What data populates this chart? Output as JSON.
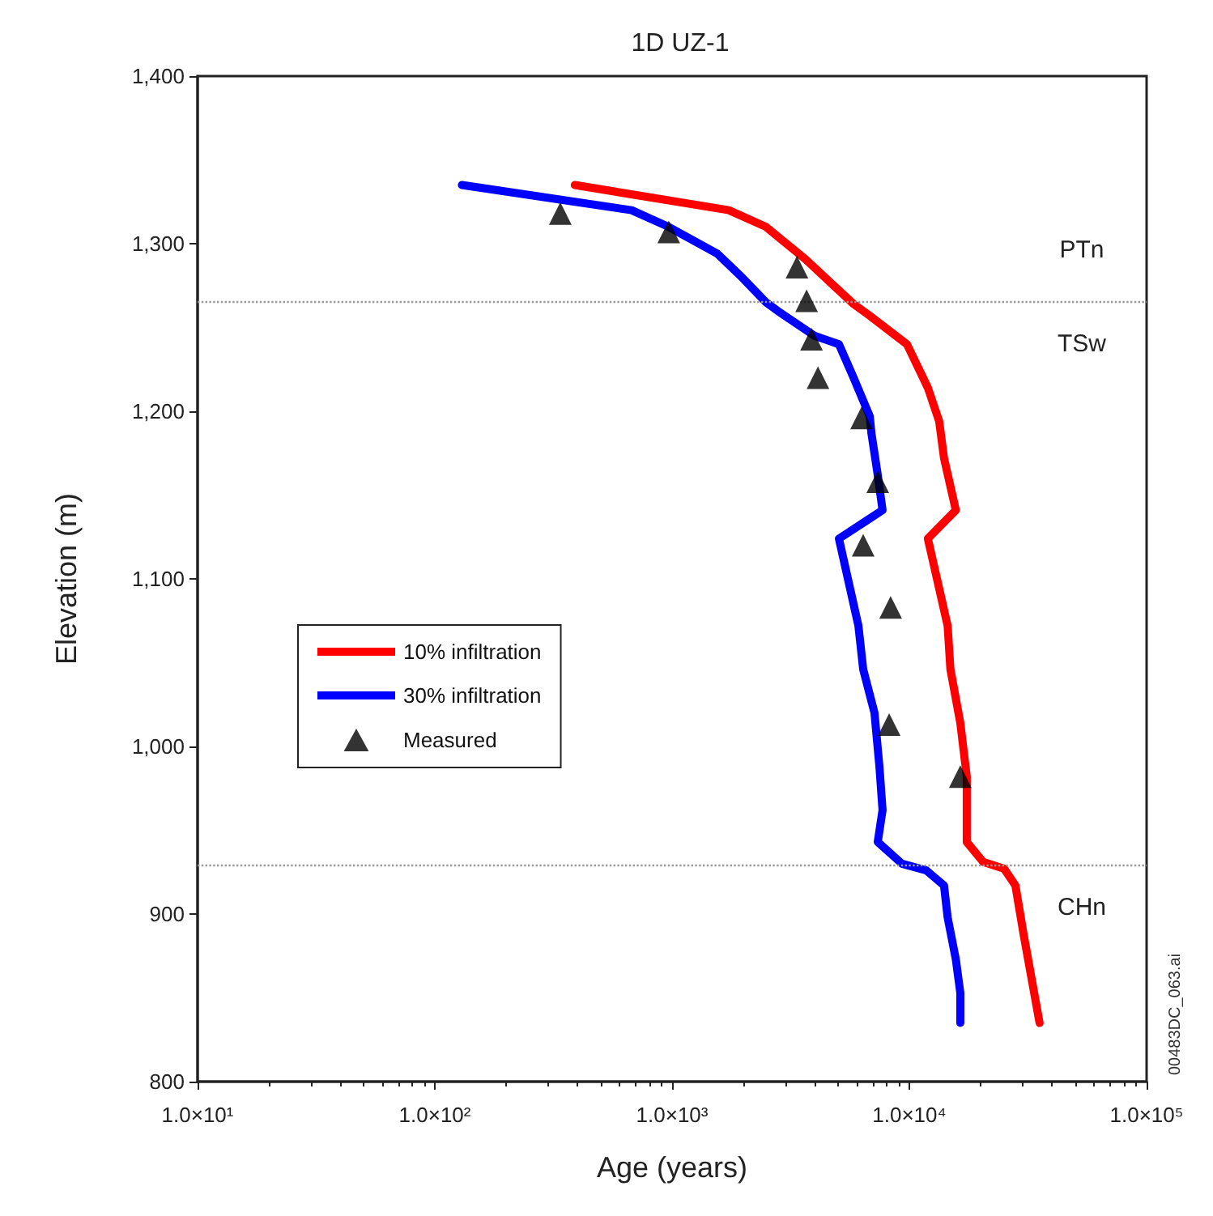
{
  "chart_data": {
    "type": "line",
    "title": "1D UZ-1",
    "xlabel": "Age (years)",
    "ylabel": "Elevation (m)",
    "log": "x",
    "grid": false,
    "legend": "left",
    "line_style": "solid",
    "xlim": [
      10,
      100000
    ],
    "xticks": [
      {
        "value": 10,
        "label": "1.0×10¹"
      },
      {
        "value": 100,
        "label": "1.0×10²"
      },
      {
        "value": 1000,
        "label": "1.0×10³"
      },
      {
        "value": 10000,
        "label": "1.0×10⁴"
      },
      {
        "value": 100000,
        "label": "1.0×10⁵"
      }
    ],
    "ylim": [
      800,
      1400
    ],
    "yticks": [
      {
        "value": 800,
        "label": "800"
      },
      {
        "value": 900,
        "label": "900"
      },
      {
        "value": 1000,
        "label": "1,000"
      },
      {
        "value": 1100,
        "label": "1,100"
      },
      {
        "value": 1200,
        "label": "1,200"
      },
      {
        "value": 1300,
        "label": "1,300"
      },
      {
        "value": 1400,
        "label": "1,400"
      }
    ],
    "series": [
      {
        "name": "10% infiltration",
        "marker": "none",
        "color": "#ff0000",
        "x": [
          389,
          1734,
          2490,
          3630,
          5820,
          6810,
          9770,
          11970,
          13360,
          14000,
          15700,
          11970,
          14500,
          14900,
          16400,
          17460,
          17460,
          20500,
          25100,
          28000,
          30300,
          35400
        ],
        "values": [
          1335,
          1320,
          1310,
          1291,
          1264,
          1257,
          1240,
          1214,
          1194,
          1172,
          1141,
          1124,
          1072,
          1046,
          1014,
          982,
          943,
          931,
          927,
          917,
          888,
          835
        ]
      },
      {
        "name": "30% infiltration",
        "marker": "none",
        "color": "#0000ff",
        "x": [
          130,
          675,
          968,
          1552,
          1935,
          2490,
          2780,
          3990,
          5050,
          5820,
          6810,
          6920,
          7360,
          7710,
          6810,
          5050,
          6100,
          6390,
          7130,
          7480,
          7710,
          7360,
          9310,
          11800,
          14000,
          14500,
          15700,
          16400,
          16400
        ],
        "values": [
          1335,
          1320,
          1310,
          1294,
          1281,
          1265,
          1260,
          1245,
          1240,
          1220,
          1197,
          1187,
          1162,
          1141,
          1136,
          1124,
          1072,
          1046,
          1020,
          988,
          962,
          943,
          930,
          926,
          917,
          898,
          873,
          853,
          835
        ]
      },
      {
        "name": "Measured",
        "type": "scatter",
        "marker": "triangle",
        "color": "#000000",
        "x": [
          338,
          968,
          3360,
          3690,
          3870,
          4120,
          6290,
          7360,
          6390,
          8340,
          8220,
          16400
        ],
        "values": [
          1318,
          1307,
          1286,
          1266,
          1243,
          1220,
          1196,
          1158,
          1120,
          1083,
          1013,
          982
        ]
      }
    ],
    "ref_lines": [
      {
        "axis": "y",
        "value": 1265,
        "color": "#999999",
        "line_style": "dotted"
      },
      {
        "axis": "y",
        "value": 929,
        "color": "#999999",
        "line_style": "dotted"
      }
    ],
    "annotations": [
      "PTn",
      "TSw",
      "CHn",
      "00483DC_063.ai"
    ]
  }
}
